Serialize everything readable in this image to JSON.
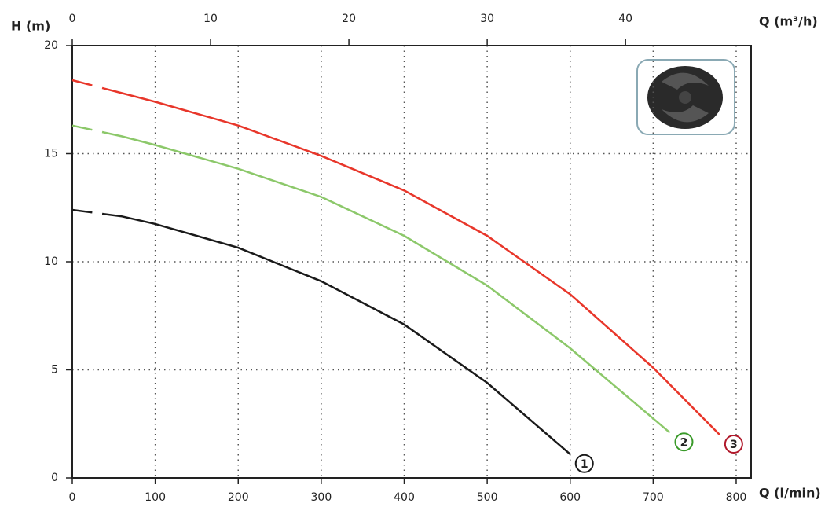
{
  "chart_data": {
    "type": "line",
    "y_label": "H (m)",
    "x_label": "Q (l/min)",
    "x2_label": "Q (m³/h)",
    "xlim": [
      0,
      818
    ],
    "xticks": [
      0,
      100,
      200,
      300,
      400,
      500,
      600,
      700,
      800
    ],
    "x2lim": [
      0,
      49.08
    ],
    "x2ticks": [
      0,
      10,
      20,
      30,
      40
    ],
    "ylim": [
      0,
      20
    ],
    "yticks": [
      0,
      5,
      10,
      15,
      20
    ],
    "grid": true,
    "x": [
      0,
      60,
      100,
      200,
      300,
      400,
      500,
      600,
      700,
      720,
      780
    ],
    "series": [
      {
        "name": "1",
        "color": "#1a1a1a",
        "values": [
          12.4,
          12.1,
          11.75,
          10.65,
          9.1,
          7.1,
          4.4,
          1.1,
          null,
          null,
          null
        ]
      },
      {
        "name": "2",
        "color": "#8cc86a",
        "label_color": "#3a9a2a",
        "values": [
          16.3,
          15.8,
          15.4,
          14.3,
          13.0,
          11.2,
          8.9,
          6.0,
          null,
          2.1,
          null
        ]
      },
      {
        "name": "3",
        "color": "#e8362a",
        "label_color": "#b0182a",
        "values": [
          18.4,
          17.8,
          17.4,
          16.3,
          14.9,
          13.3,
          11.2,
          8.5,
          5.1,
          null,
          2.0
        ]
      }
    ]
  }
}
